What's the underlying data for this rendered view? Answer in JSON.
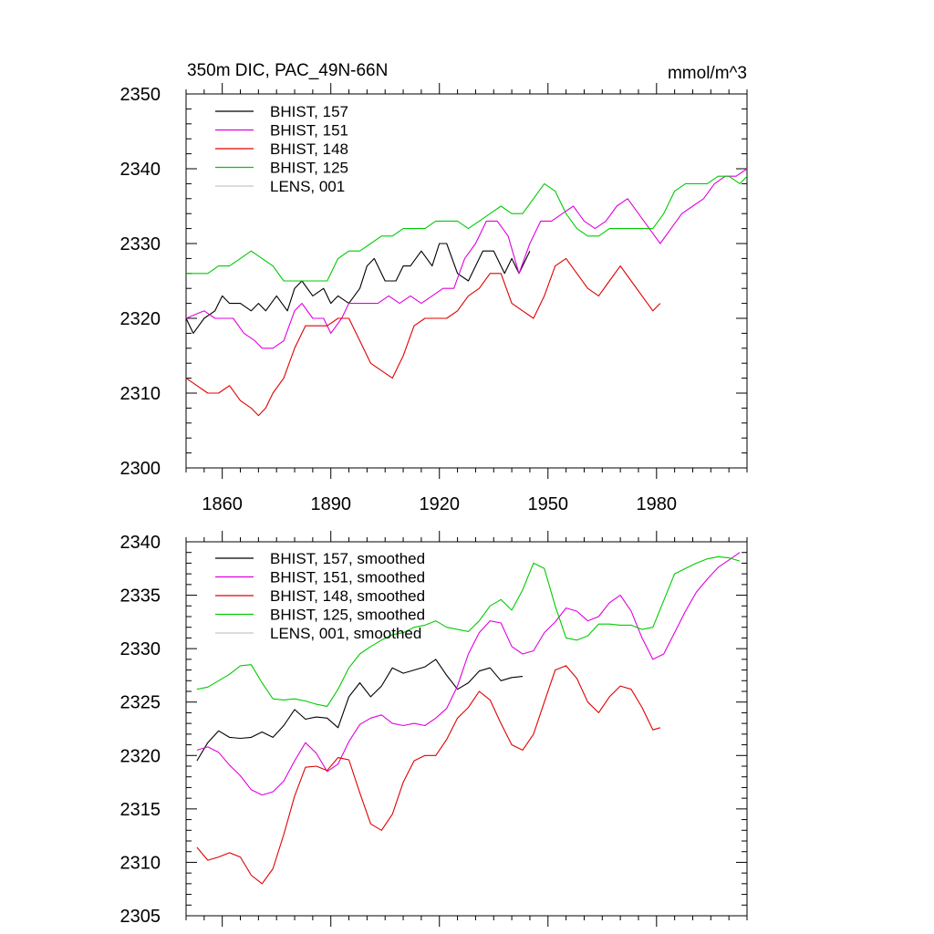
{
  "figure": {
    "top_title_left": "350m DIC, PAC_49N-66N",
    "top_title_right": "mmol/m^3"
  },
  "colors": {
    "BHIST_157": "#000000",
    "BHIST_151": "#e000e0",
    "BHIST_148": "#e00000",
    "BHIST_125": "#00cc00",
    "LENS_001": "#c8c8c8"
  },
  "chart_data": [
    {
      "type": "line",
      "title": "350m DIC, PAC_49N-66N",
      "units": "mmol/m^3",
      "xlabel": "",
      "ylabel": "",
      "xlim": [
        1850,
        2005
      ],
      "ylim": [
        2300,
        2350
      ],
      "xticks": [
        1860,
        1890,
        1920,
        1950,
        1980
      ],
      "yticks": [
        2300,
        2310,
        2320,
        2330,
        2340,
        2350
      ],
      "legend_position": "top-left",
      "series": [
        {
          "name": "BHIST, 157",
          "color_key": "BHIST_157",
          "x": [
            1850,
            1852,
            1855,
            1858,
            1860,
            1862,
            1865,
            1868,
            1870,
            1872,
            1875,
            1878,
            1880,
            1882,
            1885,
            1888,
            1890,
            1892,
            1895,
            1898,
            1900,
            1902,
            1905,
            1908,
            1910,
            1912,
            1915,
            1918,
            1920,
            1922,
            1925,
            1928,
            1930,
            1932,
            1935,
            1938,
            1940,
            1942,
            1945
          ],
          "y": [
            2320,
            2318,
            2320,
            2321,
            2323,
            2322,
            2322,
            2321,
            2322,
            2321,
            2323,
            2321,
            2324,
            2325,
            2323,
            2324,
            2322,
            2323,
            2322,
            2324,
            2327,
            2328,
            2325,
            2325,
            2327,
            2327,
            2329,
            2327,
            2330,
            2330,
            2326,
            2325,
            2327,
            2329,
            2329,
            2326,
            2328,
            2326,
            2329
          ]
        },
        {
          "name": "BHIST, 151",
          "color_key": "BHIST_151",
          "x": [
            1850,
            1855,
            1858,
            1860,
            1863,
            1866,
            1869,
            1871,
            1874,
            1877,
            1880,
            1882,
            1885,
            1888,
            1890,
            1893,
            1895,
            1898,
            1900,
            1903,
            1906,
            1909,
            1912,
            1915,
            1918,
            1921,
            1924,
            1927,
            1930,
            1933,
            1936,
            1939,
            1942,
            1945,
            1948,
            1951,
            1954,
            1957,
            1960,
            1963,
            1966,
            1969,
            1972,
            1975,
            1978,
            1981,
            1984,
            1987,
            1990,
            1993,
            1996,
            1999,
            2002,
            2005
          ],
          "y": [
            2320,
            2321,
            2320,
            2320,
            2320,
            2318,
            2317,
            2316,
            2316,
            2317,
            2321,
            2322,
            2320,
            2320,
            2318,
            2320,
            2322,
            2322,
            2322,
            2322,
            2323,
            2322,
            2323,
            2322,
            2323,
            2324,
            2324,
            2328,
            2330,
            2333,
            2333,
            2331,
            2326,
            2330,
            2333,
            2333,
            2334,
            2335,
            2333,
            2332,
            2333,
            2335,
            2336,
            2334,
            2332,
            2330,
            2332,
            2334,
            2335,
            2336,
            2338,
            2339,
            2339,
            2340
          ]
        },
        {
          "name": "BHIST, 148",
          "color_key": "BHIST_148",
          "x": [
            1850,
            1853,
            1856,
            1859,
            1862,
            1865,
            1868,
            1870,
            1872,
            1874,
            1877,
            1880,
            1883,
            1886,
            1889,
            1892,
            1895,
            1898,
            1901,
            1904,
            1907,
            1910,
            1913,
            1916,
            1919,
            1922,
            1925,
            1928,
            1931,
            1934,
            1937,
            1940,
            1943,
            1946,
            1949,
            1952,
            1955,
            1958,
            1961,
            1964,
            1967,
            1970,
            1973,
            1976,
            1979,
            1981
          ],
          "y": [
            2312,
            2311,
            2310,
            2310,
            2311,
            2309,
            2308,
            2307,
            2308,
            2310,
            2312,
            2316,
            2319,
            2319,
            2319,
            2320,
            2320,
            2317,
            2314,
            2313,
            2312,
            2315,
            2319,
            2320,
            2320,
            2320,
            2321,
            2323,
            2324,
            2326,
            2326,
            2322,
            2321,
            2320,
            2323,
            2327,
            2328,
            2326,
            2324,
            2323,
            2325,
            2327,
            2325,
            2323,
            2321,
            2322
          ]
        },
        {
          "name": "BHIST, 125",
          "color_key": "BHIST_125",
          "x": [
            1850,
            1853,
            1856,
            1859,
            1862,
            1865,
            1868,
            1871,
            1874,
            1877,
            1880,
            1883,
            1886,
            1889,
            1892,
            1895,
            1898,
            1901,
            1904,
            1907,
            1910,
            1913,
            1916,
            1919,
            1922,
            1925,
            1928,
            1931,
            1934,
            1937,
            1940,
            1943,
            1946,
            1949,
            1952,
            1955,
            1958,
            1961,
            1964,
            1967,
            1970,
            1973,
            1976,
            1979,
            1982,
            1985,
            1988,
            1991,
            1994,
            1997,
            2000,
            2003,
            2005
          ],
          "y": [
            2326,
            2326,
            2326,
            2327,
            2327,
            2328,
            2329,
            2328,
            2327,
            2325,
            2325,
            2325,
            2325,
            2325,
            2328,
            2329,
            2329,
            2330,
            2331,
            2331,
            2332,
            2332,
            2332,
            2333,
            2333,
            2333,
            2332,
            2333,
            2334,
            2335,
            2334,
            2334,
            2336,
            2338,
            2337,
            2334,
            2332,
            2331,
            2331,
            2332,
            2332,
            2332,
            2332,
            2332,
            2334,
            2337,
            2338,
            2338,
            2338,
            2339,
            2339,
            2338,
            2339
          ]
        },
        {
          "name": "LENS, 001",
          "color_key": "LENS_001",
          "x": [],
          "y": []
        }
      ]
    },
    {
      "type": "line",
      "title": "",
      "xlabel": "",
      "ylabel": "",
      "xlim": [
        1850,
        2005
      ],
      "ylim": [
        2305,
        2340
      ],
      "yticks": [
        2305,
        2310,
        2315,
        2320,
        2325,
        2330,
        2335,
        2340
      ],
      "legend_position": "top-left",
      "series": [
        {
          "name": "BHIST, 157, smoothed",
          "color_key": "BHIST_157",
          "x": [
            1853,
            1856,
            1859,
            1862,
            1865,
            1868,
            1871,
            1874,
            1877,
            1880,
            1883,
            1886,
            1889,
            1892,
            1895,
            1898,
            1901,
            1904,
            1907,
            1910,
            1913,
            1916,
            1919,
            1922,
            1925,
            1928,
            1931,
            1934,
            1937,
            1940,
            1943
          ],
          "y": [
            2319.5,
            2321.2,
            2322.3,
            2321.7,
            2321.6,
            2321.7,
            2322.2,
            2321.7,
            2322.8,
            2324.3,
            2323.4,
            2323.6,
            2323.5,
            2322.6,
            2325.5,
            2326.8,
            2325.5,
            2326.5,
            2328.2,
            2327.7,
            2328.0,
            2328.3,
            2329.0,
            2327.5,
            2326.2,
            2326.8,
            2327.9,
            2328.2,
            2327.0,
            2327.3,
            2327.4
          ]
        },
        {
          "name": "BHIST, 151, smoothed",
          "color_key": "BHIST_151",
          "x": [
            1853,
            1856,
            1859,
            1862,
            1865,
            1868,
            1871,
            1874,
            1877,
            1880,
            1883,
            1886,
            1889,
            1892,
            1895,
            1898,
            1901,
            1904,
            1907,
            1910,
            1913,
            1916,
            1919,
            1922,
            1925,
            1928,
            1931,
            1934,
            1937,
            1940,
            1943,
            1946,
            1949,
            1952,
            1955,
            1958,
            1961,
            1964,
            1967,
            1970,
            1973,
            1976,
            1979,
            1982,
            1985,
            1988,
            1991,
            1994,
            1997,
            2000,
            2003
          ],
          "y": [
            2320.5,
            2320.8,
            2320.3,
            2319.1,
            2318.1,
            2316.8,
            2316.3,
            2316.6,
            2317.6,
            2319.5,
            2321.2,
            2320.2,
            2318.5,
            2319.2,
            2321.3,
            2322.9,
            2323.5,
            2323.8,
            2323.0,
            2322.8,
            2323.0,
            2322.8,
            2323.5,
            2324.4,
            2326.5,
            2329.5,
            2331.5,
            2332.6,
            2332.4,
            2330.2,
            2329.5,
            2329.8,
            2331.5,
            2332.5,
            2333.8,
            2333.5,
            2332.6,
            2333.0,
            2334.3,
            2335.0,
            2333.5,
            2331.0,
            2329.0,
            2329.5,
            2331.5,
            2333.5,
            2335.3,
            2336.5,
            2337.6,
            2338.3,
            2339.0
          ]
        },
        {
          "name": "BHIST, 148, smoothed",
          "color_key": "BHIST_148",
          "x": [
            1853,
            1856,
            1859,
            1862,
            1865,
            1868,
            1871,
            1874,
            1877,
            1880,
            1883,
            1886,
            1889,
            1892,
            1895,
            1898,
            1901,
            1904,
            1907,
            1910,
            1913,
            1916,
            1919,
            1922,
            1925,
            1928,
            1931,
            1934,
            1937,
            1940,
            1943,
            1946,
            1949,
            1952,
            1955,
            1958,
            1961,
            1964,
            1967,
            1970,
            1973,
            1976,
            1979,
            1981
          ],
          "y": [
            2311.4,
            2310.2,
            2310.5,
            2310.9,
            2310.5,
            2308.8,
            2308.0,
            2309.4,
            2312.6,
            2316.2,
            2318.9,
            2319.0,
            2318.6,
            2319.8,
            2319.6,
            2316.5,
            2313.6,
            2313.0,
            2314.5,
            2317.5,
            2319.5,
            2320.0,
            2320.0,
            2321.5,
            2323.5,
            2324.5,
            2326.0,
            2325.2,
            2323.0,
            2321.0,
            2320.5,
            2322.0,
            2325.0,
            2328.0,
            2328.4,
            2327.2,
            2325.0,
            2324.0,
            2325.5,
            2326.5,
            2326.2,
            2324.5,
            2322.4,
            2322.6
          ]
        },
        {
          "name": "BHIST, 125, smoothed",
          "color_key": "BHIST_125",
          "x": [
            1853,
            1856,
            1859,
            1862,
            1865,
            1868,
            1871,
            1874,
            1877,
            1880,
            1883,
            1886,
            1889,
            1892,
            1895,
            1898,
            1901,
            1904,
            1907,
            1910,
            1913,
            1916,
            1919,
            1922,
            1925,
            1928,
            1931,
            1934,
            1937,
            1940,
            1943,
            1946,
            1949,
            1952,
            1955,
            1958,
            1961,
            1964,
            1967,
            1970,
            1973,
            1976,
            1979,
            1982,
            1985,
            1988,
            1991,
            1994,
            1997,
            2000,
            2003
          ],
          "y": [
            2326.2,
            2326.4,
            2327.0,
            2327.6,
            2328.4,
            2328.5,
            2326.8,
            2325.3,
            2325.2,
            2325.3,
            2325.1,
            2324.8,
            2324.6,
            2326.2,
            2328.2,
            2329.5,
            2330.2,
            2330.8,
            2331.3,
            2331.5,
            2332.0,
            2332.2,
            2332.6,
            2332.0,
            2331.8,
            2331.6,
            2332.6,
            2334.0,
            2334.6,
            2333.6,
            2335.5,
            2338.0,
            2337.5,
            2334.0,
            2331.0,
            2330.8,
            2331.2,
            2332.3,
            2332.3,
            2332.2,
            2332.2,
            2331.8,
            2332.0,
            2334.5,
            2337.0,
            2337.5,
            2338.0,
            2338.4,
            2338.6,
            2338.5,
            2338.2
          ]
        },
        {
          "name": "LENS, 001, smoothed",
          "color_key": "LENS_001",
          "x": [],
          "y": []
        }
      ]
    }
  ]
}
